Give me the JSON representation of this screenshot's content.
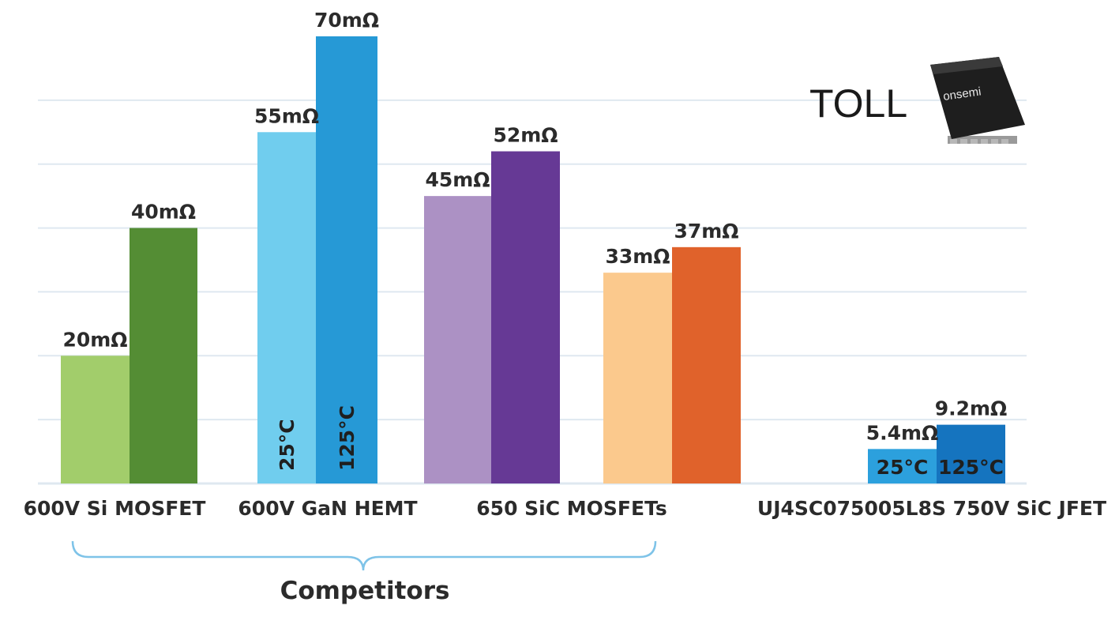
{
  "chart_data": {
    "type": "bar",
    "unit": "mΩ",
    "ylim": [
      0,
      70
    ],
    "grid": true,
    "categories": [
      "600V Si MOSFET",
      "600V GaN HEMT",
      "650 SiC MOSFETs",
      "",
      "UJ4SC075005L8S 750V SiC JFET"
    ],
    "bars": [
      {
        "category": "600V Si MOSFET",
        "value": 20,
        "label": "20mΩ",
        "color": "#a2cd6b"
      },
      {
        "category": "600V Si MOSFET",
        "value": 40,
        "label": "40mΩ",
        "color": "#548d34"
      },
      {
        "category": "600V GaN HEMT",
        "value": 55,
        "label": "55mΩ",
        "color": "#70cdee",
        "temp": "25°C"
      },
      {
        "category": "600V GaN HEMT",
        "value": 70,
        "label": "70mΩ",
        "color": "#2699d6",
        "temp": "125°C"
      },
      {
        "category": "650 SiC MOSFETs",
        "value": 45,
        "label": "45mΩ",
        "color": "#ac91c4"
      },
      {
        "category": "650 SiC MOSFETs",
        "value": 52,
        "label": "52mΩ",
        "color": "#663995"
      },
      {
        "category": "650 SiC MOSFETs",
        "value": 33,
        "label": "33mΩ",
        "color": "#fbc98d"
      },
      {
        "category": "650 SiC MOSFETs",
        "value": 37,
        "label": "37mΩ",
        "color": "#e0622b"
      },
      {
        "category": "UJ4SC075005L8S 750V SiC JFET",
        "value": 5.4,
        "label": "5.4mΩ",
        "color": "#2ca0dd",
        "temp": "25°C"
      },
      {
        "category": "UJ4SC075005L8S 750V SiC JFET",
        "value": 9.2,
        "label": "9.2mΩ",
        "color": "#1574bf",
        "temp": "125°C"
      }
    ],
    "group_label": "Competitors",
    "annotation": "TOLL",
    "chip_brand": "onsemi"
  }
}
